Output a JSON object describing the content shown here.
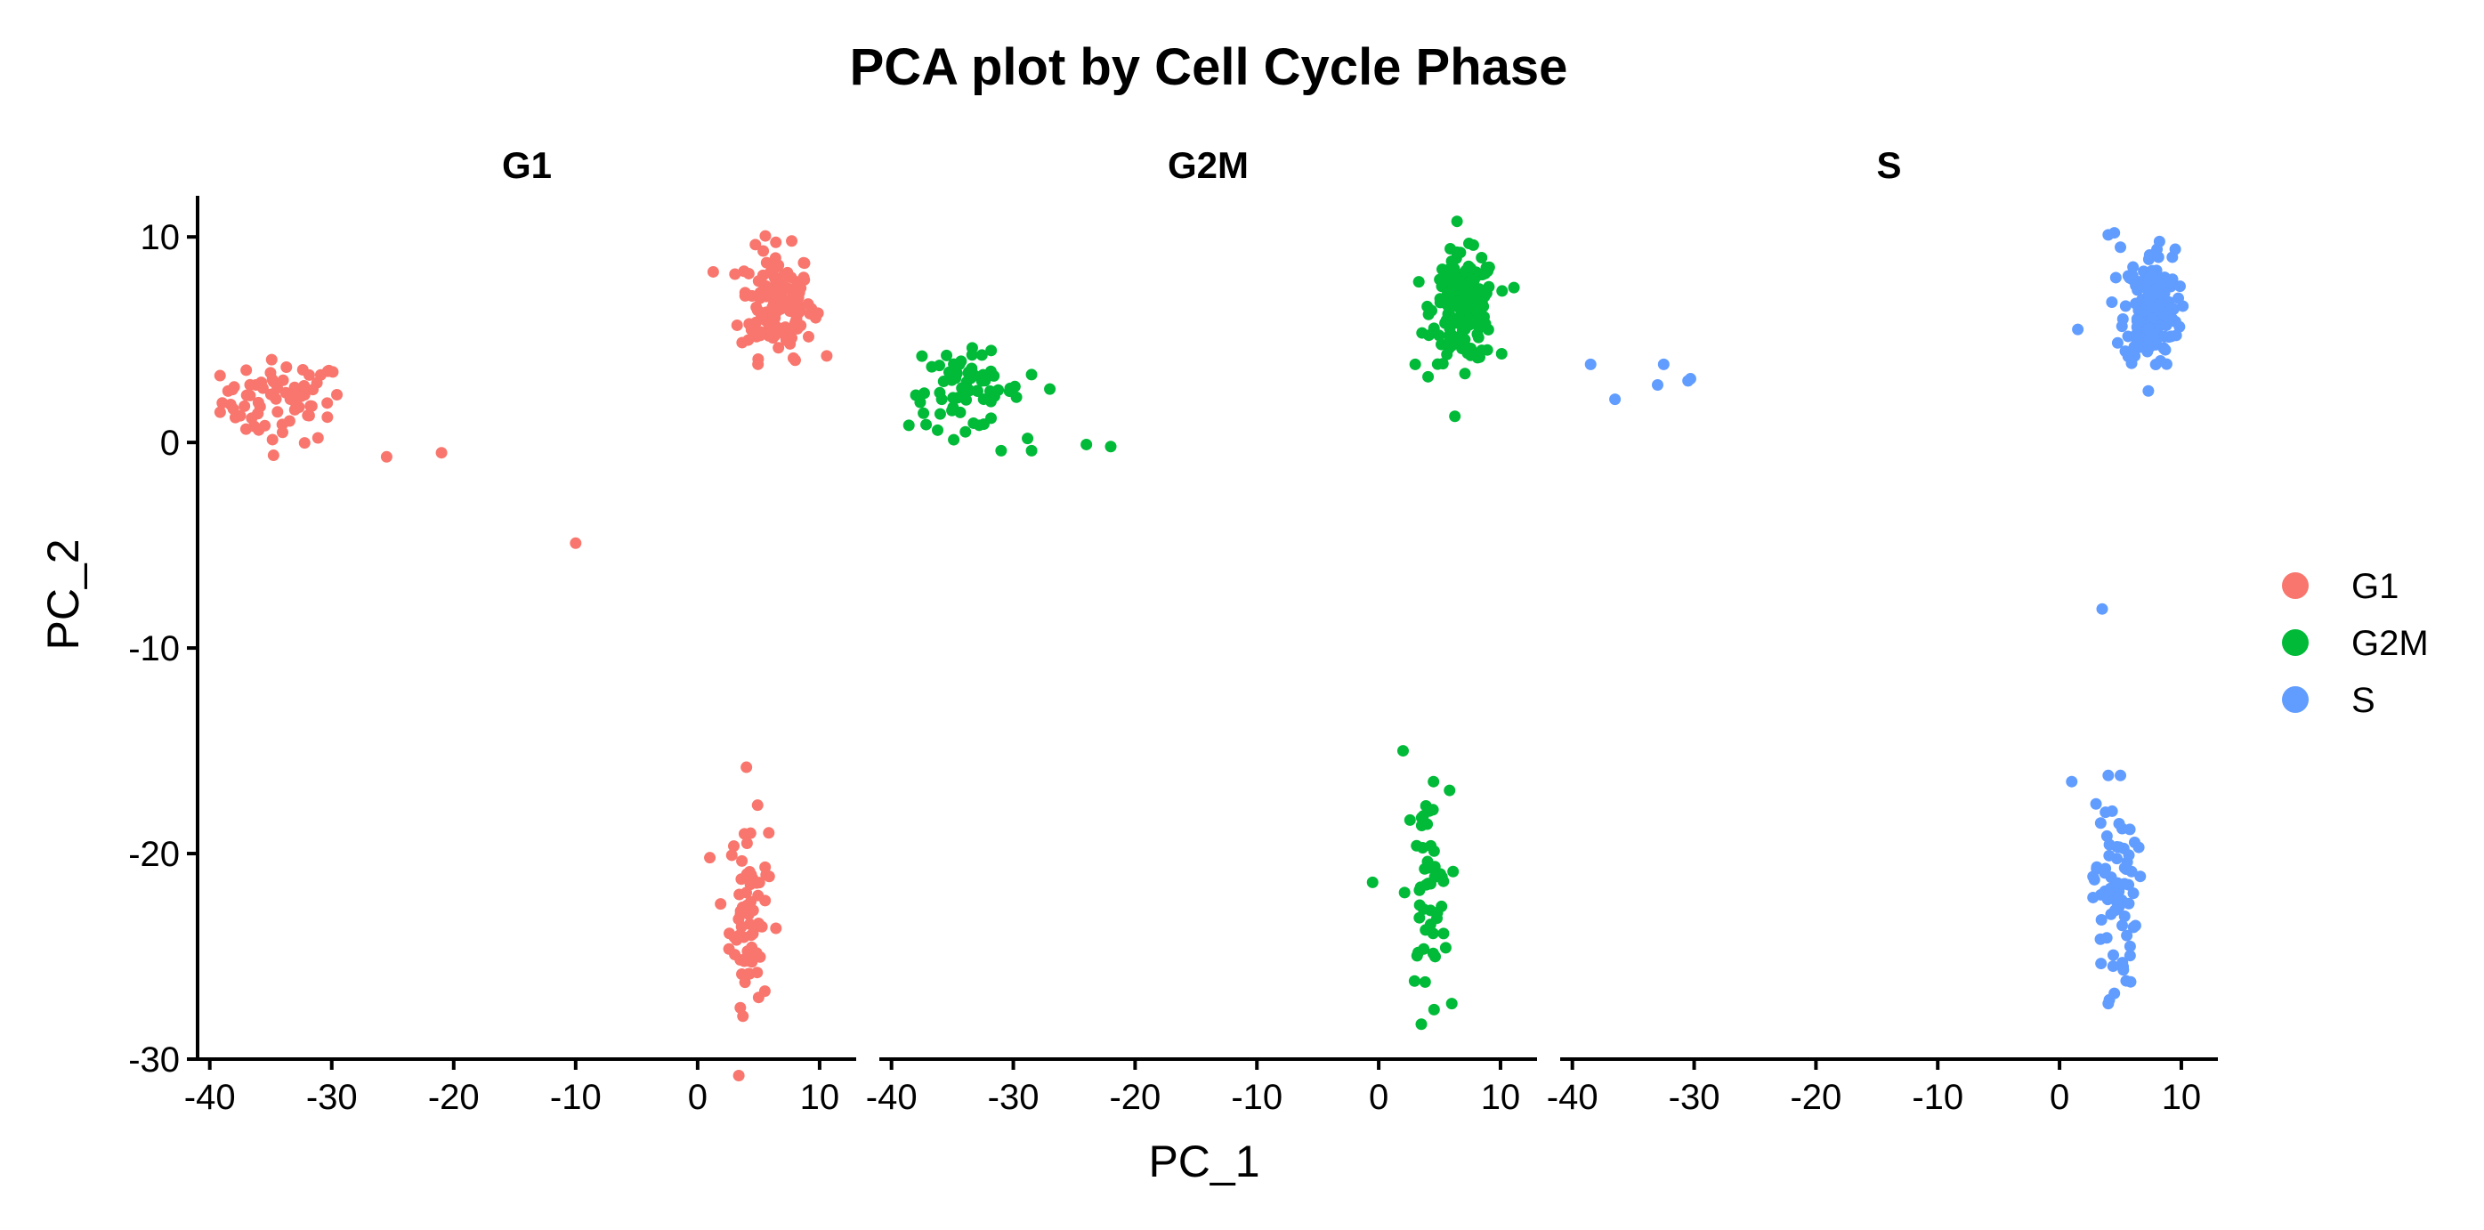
{
  "chart_data": {
    "type": "scatter",
    "title": "PCA plot by Cell Cycle Phase",
    "xlabel": "PC_1",
    "ylabel": "PC_2",
    "xlim": [
      -41,
      13
    ],
    "ylim": [
      -30,
      12
    ],
    "x_ticks": [
      -40,
      -30,
      -20,
      -10,
      0,
      10
    ],
    "y_ticks": [
      10,
      0,
      -10,
      -20,
      -30
    ],
    "x_tick_labels": [
      "-40",
      "-30",
      "-20",
      "-10",
      "0",
      "10"
    ],
    "y_tick_labels": [
      "10",
      "0",
      "-10",
      "-20",
      "-30"
    ],
    "grid": false,
    "legend_position": "right",
    "facets": [
      "G1",
      "G2M",
      "S"
    ],
    "series": [
      {
        "name": "G1",
        "color": "#F8766D",
        "clusters": [
          {
            "cx": -34,
            "cy": 2.0,
            "sx": 2.5,
            "sy": 1.0,
            "n": 70
          },
          {
            "cx": 6.5,
            "cy": 6.8,
            "sx": 1.5,
            "sy": 1.3,
            "n": 140
          },
          {
            "cx": 4.2,
            "cy": -23.0,
            "sx": 0.8,
            "sy": 2.3,
            "n": 70
          }
        ],
        "points": [
          [
            -38.5,
            2.5
          ],
          [
            -38,
            2.7
          ],
          [
            -37.5,
            1.3
          ],
          [
            -25.5,
            -0.7
          ],
          [
            -21,
            -0.5
          ],
          [
            -10,
            -4.9
          ],
          [
            4,
            -15.8
          ],
          [
            1,
            -20.2
          ],
          [
            3.5,
            -27.5
          ],
          [
            5,
            -27.0
          ],
          [
            8,
            4.0
          ]
        ]
      },
      {
        "name": "G2M",
        "color": "#00BA38",
        "clusters": [
          {
            "cx": -34,
            "cy": 2.5,
            "sx": 2.3,
            "sy": 0.9,
            "n": 65
          },
          {
            "cx": 7.0,
            "cy": 6.5,
            "sx": 1.3,
            "sy": 1.3,
            "n": 200
          },
          {
            "cx": 4.0,
            "cy": -22.0,
            "sx": 0.9,
            "sy": 2.5,
            "n": 50
          }
        ],
        "points": [
          [
            -37.5,
            4.2
          ],
          [
            -38,
            2.3
          ],
          [
            -31,
            -0.4
          ],
          [
            -28.5,
            -0.4
          ],
          [
            -24,
            -0.1
          ],
          [
            -22,
            -0.2
          ],
          [
            -27,
            2.6
          ],
          [
            -28.5,
            3.3
          ],
          [
            2,
            -15.0
          ],
          [
            -0.5,
            -21.4
          ],
          [
            3.5,
            -28.3
          ],
          [
            6,
            -27.3
          ],
          [
            3,
            3.8
          ],
          [
            4.5,
            -16.5
          ]
        ]
      },
      {
        "name": "S",
        "color": "#619CFF",
        "clusters": [
          {
            "cx": 7.5,
            "cy": 6.5,
            "sx": 1.1,
            "sy": 1.4,
            "n": 170
          },
          {
            "cx": 4.5,
            "cy": -22.0,
            "sx": 0.9,
            "sy": 2.3,
            "n": 70
          }
        ],
        "points": [
          [
            -38.5,
            3.8
          ],
          [
            -36.5,
            2.1
          ],
          [
            -33,
            2.8
          ],
          [
            -32.5,
            3.8
          ],
          [
            -30.5,
            3.0
          ],
          [
            -30.3,
            3.1
          ],
          [
            3.5,
            -8.1
          ],
          [
            1,
            -16.5
          ],
          [
            4,
            -16.2
          ],
          [
            5,
            -16.2
          ],
          [
            4,
            -27.3
          ],
          [
            4.5,
            -26.8
          ],
          [
            1.5,
            5.5
          ],
          [
            4,
            10.1
          ],
          [
            4.5,
            10.2
          ],
          [
            5,
            9.5
          ],
          [
            8,
            9.4
          ],
          [
            9.5,
            9.4
          ]
        ]
      }
    ]
  }
}
